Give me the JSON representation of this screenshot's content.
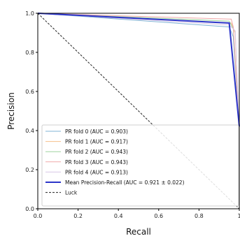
{
  "chart_data": {
    "type": "line",
    "xlabel": "Recall",
    "ylabel": "Precision",
    "xlim": [
      0.0,
      1.0
    ],
    "ylim": [
      0.0,
      1.0
    ],
    "xticks": [
      "0.0",
      "0.2",
      "0.4",
      "0.6",
      "0.8",
      "1"
    ],
    "yticks": [
      "0.0",
      "0.2",
      "0.4",
      "0.6",
      "0.8",
      "1.0"
    ],
    "grid": false,
    "legend_position": "lower-left",
    "series": [
      {
        "name": "PR fold 0 (AUC = 0.903)",
        "color": "#7fb3d5",
        "x": [
          0.0,
          0.95,
          0.97,
          1.0
        ],
        "y": [
          1.0,
          0.93,
          0.88,
          0.4
        ]
      },
      {
        "name": "PR fold 1 (AUC = 0.917)",
        "color": "#f5c08a",
        "x": [
          0.0,
          0.96,
          0.98,
          1.0
        ],
        "y": [
          1.0,
          0.95,
          0.9,
          0.38
        ]
      },
      {
        "name": "PR fold 2 (AUC = 0.943)",
        "color": "#9fd39f",
        "x": [
          0.0,
          0.95,
          0.97,
          1.0
        ],
        "y": [
          1.0,
          0.96,
          0.92,
          0.4
        ]
      },
      {
        "name": "PR fold 3 (AUC = 0.943)",
        "color": "#f0a8a8",
        "x": [
          0.0,
          0.96,
          0.97,
          1.0
        ],
        "y": [
          1.0,
          0.97,
          0.93,
          0.41
        ]
      },
      {
        "name": "PR fold 4 (AUC = 0.913)",
        "color": "#d7c7e6",
        "x": [
          0.0,
          0.95,
          0.98,
          1.0
        ],
        "y": [
          1.0,
          0.94,
          0.91,
          0.39
        ]
      },
      {
        "name": "Mean Precision-Recall (AUC = 0.921 ± 0.022)",
        "color": "#2c35c9",
        "x": [
          0.0,
          0.95,
          1.0
        ],
        "y": [
          1.0,
          0.95,
          0.42
        ]
      },
      {
        "name": "Luck",
        "color": "#222222",
        "dashed": true,
        "x": [
          0.0,
          1.0
        ],
        "y": [
          1.0,
          0.0
        ]
      }
    ]
  }
}
